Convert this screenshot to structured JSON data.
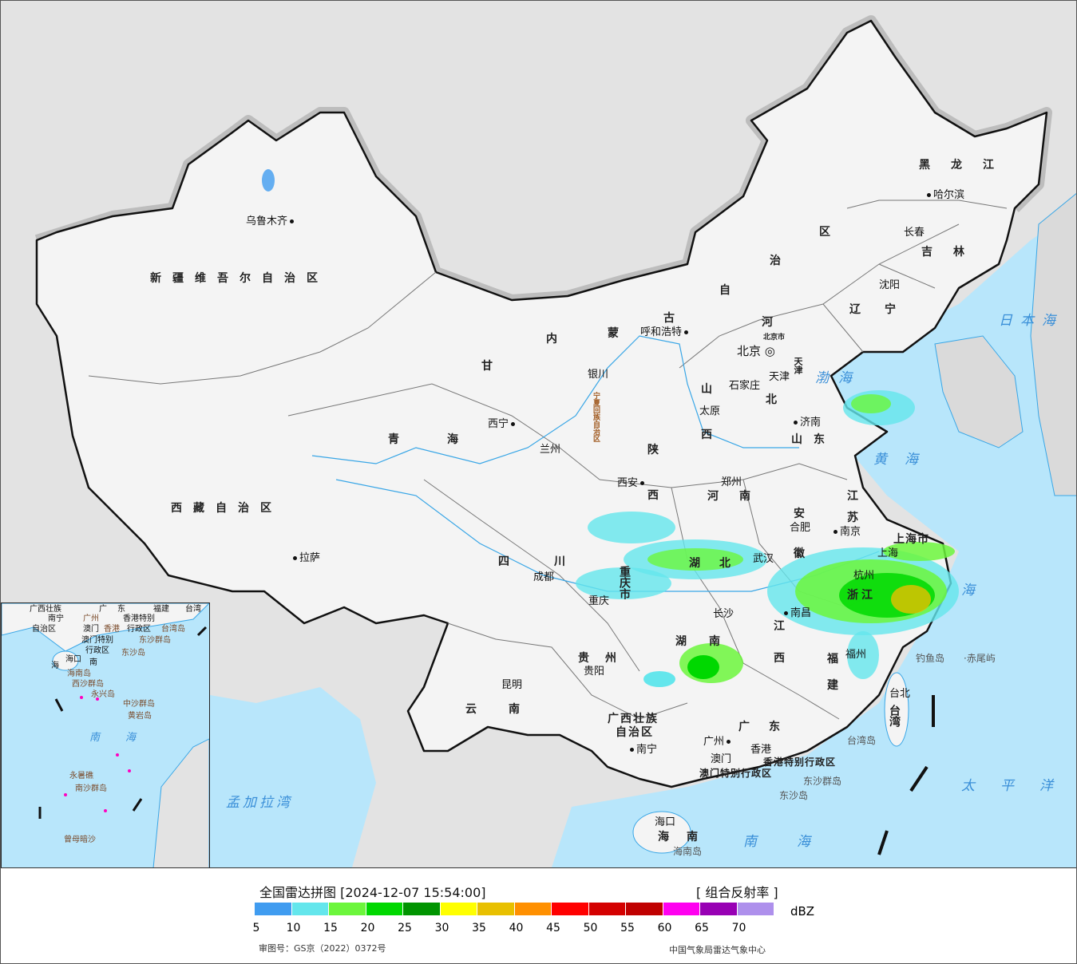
{
  "legend": {
    "title": "全国雷达拼图 [2024-12-07 15:54:00]",
    "product": "[ 组合反射率 ]",
    "unit": "dBZ",
    "ticks": [
      "5",
      "10",
      "15",
      "20",
      "25",
      "30",
      "35",
      "40",
      "45",
      "50",
      "55",
      "60",
      "65",
      "70"
    ],
    "colors": [
      "#409cf0",
      "#64e6ec",
      "#6cf63c",
      "#00d800",
      "#009400",
      "#ffff00",
      "#e8c000",
      "#ff9000",
      "#ff0000",
      "#d40000",
      "#c00000",
      "#ff00f0",
      "#9800b4",
      "#ae90ec"
    ],
    "approval": "审图号：GS京（2022）0372号",
    "agency": "中国气象局雷达气象中心"
  },
  "map": {
    "provinces": {
      "xinjiang": "新疆维吾尔自治区",
      "xizang": "西藏自治区",
      "qinghai": "青海",
      "gansu": "甘",
      "neimenggu_1": "内",
      "neimenggu_2": "蒙",
      "neimenggu_3": "古",
      "neimenggu_4": "自",
      "neimenggu_5": "治",
      "neimenggu_6": "区",
      "heilongjiang": "黑龙江",
      "jilin": "吉林",
      "liaoning": "辽宁",
      "hebei_1": "河",
      "hebei_2": "北",
      "shanxi_1": "山",
      "shanxi_2": "西",
      "shandong": "山东",
      "henan": "河南",
      "shaanxi_1": "陕",
      "shaanxi_2": "西",
      "ningxia": "宁夏回族自治区",
      "sichuan": "四川",
      "chongqing": "重庆市",
      "hubei": "湖北",
      "hunan_1": "湖",
      "hunan_2": "南",
      "jiangxi_1": "江",
      "jiangxi_2": "西",
      "anhui_1": "安",
      "anhui_2": "徽",
      "jiangsu_1": "江",
      "jiangsu_2": "苏",
      "zhejiang": "浙江",
      "fujian_1": "福",
      "fujian_2": "建",
      "guizhou": "贵州",
      "yunnan": "云南",
      "guangxi_1": "广西壮族",
      "guangxi_2": "自治区",
      "guangdong": "广东",
      "hainan": "海南",
      "taiwan": "台湾",
      "shanghai": "上海市",
      "beijing": "北京市",
      "tianjin": "天津",
      "hongkong": "香港特别行政区",
      "macau": "澳门特别行政区"
    },
    "cities": [
      "乌鲁木齐",
      "拉萨",
      "西宁",
      "兰州",
      "银川",
      "呼和浩特",
      "北京",
      "天津",
      "石家庄",
      "太原",
      "济南",
      "郑州",
      "西安",
      "成都",
      "重庆",
      "武汉",
      "合肥",
      "南京",
      "上海",
      "杭州",
      "南昌",
      "长沙",
      "福州",
      "台北",
      "贵阳",
      "昆明",
      "南宁",
      "广州",
      "澳门",
      "香港",
      "海口",
      "哈尔滨",
      "长春",
      "沈阳"
    ],
    "seas": {
      "bohai": "渤海",
      "huanghai": "黄海",
      "donghai": "海",
      "nanhai": "南海",
      "taipingyang": "太平洋",
      "ribenhai": "日本海",
      "mengjiala": "孟加拉湾"
    },
    "islands": {
      "diaoyu": "钓鱼岛",
      "chiwei": "·赤尾屿",
      "taiwandao": "台湾岛",
      "dongsha_qd": "东沙群岛",
      "dongsha_d": "东沙岛",
      "hainandao": "海南岛"
    },
    "inset": {
      "labels": [
        "广西壮族",
        "南宁",
        "自治区",
        "广",
        "东",
        "广州",
        "澳门",
        "香港",
        "香港特别",
        "行政区",
        "澳门特别",
        "行政区",
        "台湾",
        "台湾岛",
        "东沙群岛",
        "东沙岛",
        "海口",
        "海",
        "南",
        "海南岛",
        "西沙群岛",
        "永兴岛",
        "中沙群岛",
        "黄岩岛",
        "南",
        "海",
        "永暑礁",
        "南沙群岛",
        "曾母暗沙",
        "福建"
      ]
    }
  }
}
